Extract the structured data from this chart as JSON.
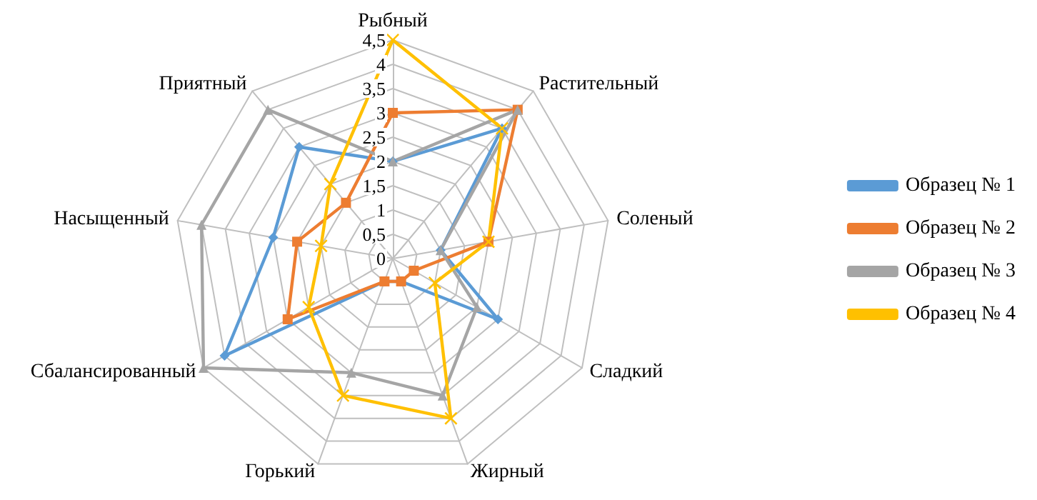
{
  "chart_data": {
    "type": "radar",
    "categories": [
      "Рыбный",
      "Растительный",
      "Соленый",
      "Сладкий",
      "Жирный",
      "Горький",
      "Сбалансированный",
      "Насыщенный",
      "Приятный"
    ],
    "ylim": [
      0,
      4.5
    ],
    "yticks": [
      0,
      {
        "value": 0.5,
        "label": "0,5"
      },
      1,
      {
        "value": 1.5,
        "label": "1,5"
      },
      2,
      {
        "value": 2.5,
        "label": "2,5"
      },
      3,
      {
        "value": 3.5,
        "label": "3,5"
      },
      4,
      {
        "value": 4.5,
        "label": "4,5"
      }
    ],
    "grid": true,
    "legend": "right",
    "series": [
      {
        "name": "Образец № 1",
        "color": "#5b9bd5",
        "marker": "diamond",
        "values": [
          2,
          3.5,
          1,
          2.5,
          0.5,
          0.5,
          4,
          2.5,
          3
        ]
      },
      {
        "name": "Образец № 2",
        "color": "#ed7d31",
        "marker": "square",
        "values": [
          3,
          4,
          2,
          0.5,
          0.5,
          0.5,
          2.5,
          2,
          1.5
        ]
      },
      {
        "name": "Образец № 3",
        "color": "#a5a5a5",
        "marker": "triangle",
        "values": [
          2,
          4,
          1,
          2,
          3,
          2.5,
          4.5,
          4,
          4
        ]
      },
      {
        "name": "Образец № 4",
        "color": "#ffc000",
        "marker": "cross",
        "values": [
          4.5,
          3.5,
          2,
          1,
          3.5,
          3,
          2,
          1.5,
          2
        ]
      }
    ]
  }
}
